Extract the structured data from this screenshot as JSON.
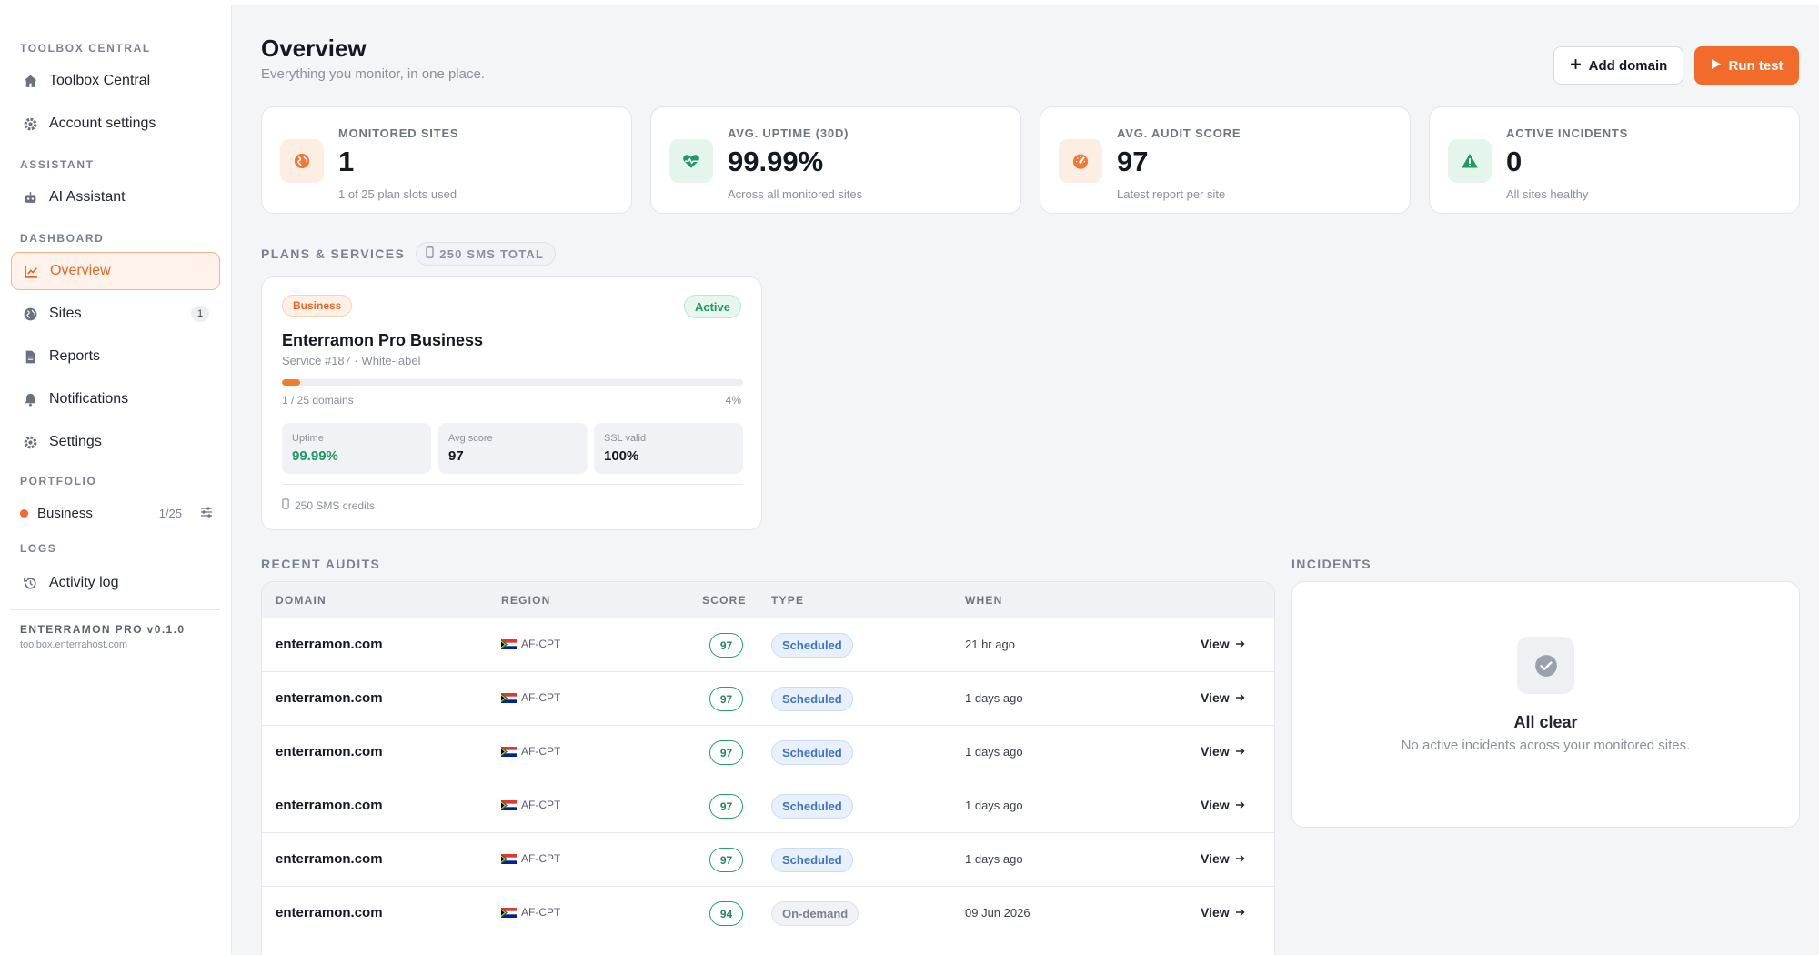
{
  "sidebar": {
    "sections": {
      "toolbox": "TOOLBOX CENTRAL",
      "assistant": "ASSISTANT",
      "dashboard": "DASHBOARD",
      "portfolio": "PORTFOLIO",
      "logs": "LOGS"
    },
    "items": {
      "toolbox_central": "Toolbox Central",
      "account_settings": "Account settings",
      "ai_assistant": "AI Assistant",
      "overview": "Overview",
      "sites": "Sites",
      "sites_badge": "1",
      "reports": "Reports",
      "notifications": "Notifications",
      "settings": "Settings",
      "activity_log": "Activity log"
    },
    "portfolio": {
      "name": "Business",
      "count": "1/25",
      "dot_color": "#ef6c2a"
    },
    "version": "ENTERRAMON PRO v0.1.0",
    "host": "toolbox.enterrahost.com"
  },
  "header": {
    "title": "Overview",
    "subtitle": "Everything you monitor, in one place.",
    "add_domain": "Add domain",
    "run_test": "Run test"
  },
  "stats": [
    {
      "label": "MONITORED SITES",
      "value": "1",
      "note": "1 of 25 plan slots used",
      "icon": "globe-icon"
    },
    {
      "label": "AVG. UPTIME (30D)",
      "value": "99.99%",
      "note": "Across all monitored sites",
      "icon": "heartbeat-icon"
    },
    {
      "label": "AVG. AUDIT SCORE",
      "value": "97",
      "note": "Latest report per site",
      "icon": "gauge-icon"
    },
    {
      "label": "ACTIVE INCIDENTS",
      "value": "0",
      "note": "All sites healthy",
      "icon": "warning-icon"
    }
  ],
  "plans": {
    "label": "PLANS & SERVICES",
    "sms_total": "250 SMS TOTAL",
    "card": {
      "tag": "Business",
      "status": "Active",
      "name": "Enterramon Pro Business",
      "meta": "Service #187 · White-label",
      "usage_fraction": 0.04,
      "domains_used": "1 / 25 domains",
      "usage_pct": "4%",
      "uptime_label": "Uptime",
      "uptime_value": "99.99%",
      "score_label": "Avg score",
      "score_value": "97",
      "ssl_label": "SSL valid",
      "ssl_value": "100%",
      "sms_credits": "250 SMS credits"
    }
  },
  "audits": {
    "label": "RECENT AUDITS",
    "columns": {
      "domain": "DOMAIN",
      "region": "REGION",
      "score": "SCORE",
      "type": "TYPE",
      "when": "WHEN"
    },
    "rows": [
      {
        "domain": "enterramon.com",
        "region": "AF-CPT",
        "score": "97",
        "type": "Scheduled",
        "when": "21 hr ago",
        "action": "View"
      },
      {
        "domain": "enterramon.com",
        "region": "AF-CPT",
        "score": "97",
        "type": "Scheduled",
        "when": "1 days ago",
        "action": "View"
      },
      {
        "domain": "enterramon.com",
        "region": "AF-CPT",
        "score": "97",
        "type": "Scheduled",
        "when": "1 days ago",
        "action": "View"
      },
      {
        "domain": "enterramon.com",
        "region": "AF-CPT",
        "score": "97",
        "type": "Scheduled",
        "when": "1 days ago",
        "action": "View"
      },
      {
        "domain": "enterramon.com",
        "region": "AF-CPT",
        "score": "97",
        "type": "Scheduled",
        "when": "1 days ago",
        "action": "View"
      },
      {
        "domain": "enterramon.com",
        "region": "AF-CPT",
        "score": "94",
        "type": "On-demand",
        "when": "09 Jun 2026",
        "action": "View"
      }
    ]
  },
  "incidents": {
    "label": "INCIDENTS",
    "title": "All clear",
    "subtitle": "No active incidents across your monitored sites."
  },
  "colors": {
    "accent": "#f26b2a",
    "success": "#1e9a63",
    "info": "#3d73c9"
  }
}
